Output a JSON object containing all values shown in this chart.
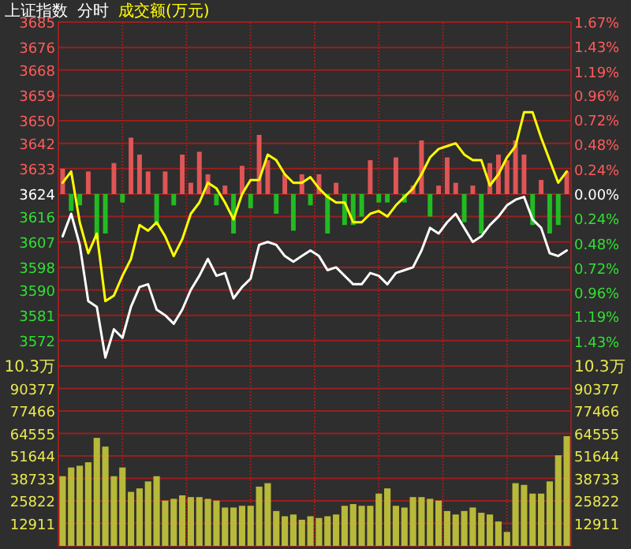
{
  "chart_data": [
    {
      "type": "line",
      "title": "上证指数",
      "subtitle": "分时",
      "annotations": [
        "成交额(万元)"
      ],
      "categories": [
        null,
        null,
        null,
        null,
        null,
        null,
        null,
        null,
        null,
        null,
        null,
        null,
        null,
        null,
        null,
        null,
        null,
        null,
        null,
        null,
        null,
        null,
        null,
        null,
        null,
        null,
        null,
        null,
        null,
        null,
        null,
        null,
        null,
        null,
        null,
        null,
        null,
        null,
        null,
        null,
        null,
        null,
        null,
        null,
        null,
        null,
        null,
        null,
        null,
        null,
        null,
        null,
        null,
        null,
        null,
        null,
        null,
        null,
        null,
        null
      ],
      "series": [
        {
          "type": "bar",
          "base": [
            3624,
            3624,
            3624,
            3624,
            3624,
            3624,
            3624,
            3624,
            3624,
            3624,
            3624,
            3624,
            3624,
            3624,
            3624,
            3624,
            3624,
            3624,
            3624,
            3624,
            3624,
            3624,
            3624,
            3624,
            3624,
            3624,
            3624,
            3624,
            3624,
            3624,
            3624,
            3624,
            3624,
            3624,
            3624,
            3624,
            3624,
            3624,
            3624,
            3624,
            3624,
            3624,
            3624,
            3624,
            3624,
            3624,
            3624,
            3624,
            3624,
            3624,
            3624,
            3624,
            3624,
            3624,
            3624,
            3624,
            3624,
            3624,
            3624,
            3624
          ],
          "values": [
            9,
            -6,
            -4,
            8,
            -16,
            -14,
            11,
            -3,
            20,
            14,
            8,
            -11,
            8,
            -4,
            14,
            4,
            15,
            7,
            -4,
            3,
            -14,
            10,
            -5,
            21,
            12,
            -7,
            7,
            -13,
            7,
            -4,
            7,
            -14,
            4,
            -11,
            -11,
            -8,
            12,
            -3,
            -3,
            13,
            -3,
            3,
            19,
            -8,
            3,
            13,
            4,
            -10,
            3,
            -14,
            11,
            14,
            12,
            19,
            14,
            -11,
            5,
            -14,
            -11,
            8
          ],
          "colors": [
            "#e05555",
            "#22bb22",
            "#22bb22",
            "#e05555",
            "#22bb22",
            "#22bb22",
            "#e05555",
            "#22bb22",
            "#e05555",
            "#e05555",
            "#e05555",
            "#22bb22",
            "#e05555",
            "#22bb22",
            "#e05555",
            "#e05555",
            "#e05555",
            "#e05555",
            "#22bb22",
            "#e05555",
            "#22bb22",
            "#e05555",
            "#22bb22",
            "#e05555",
            "#e05555",
            "#22bb22",
            "#e05555",
            "#22bb22",
            "#e05555",
            "#22bb22",
            "#e05555",
            "#22bb22",
            "#e05555",
            "#22bb22",
            "#22bb22",
            "#22bb22",
            "#e05555",
            "#22bb22",
            "#22bb22",
            "#e05555",
            "#22bb22",
            "#e05555",
            "#e05555",
            "#22bb22",
            "#e05555",
            "#e05555",
            "#e05555",
            "#22bb22",
            "#e05555",
            "#22bb22",
            "#e05555",
            "#e05555",
            "#e05555",
            "#e05555",
            "#e05555",
            "#22bb22",
            "#e05555",
            "#22bb22",
            "#22bb22",
            "#e05555"
          ]
        },
        {
          "color": "#ffffff",
          "values": [
            3609,
            3617,
            3606,
            3586,
            3584,
            3566,
            3576,
            3573,
            3584,
            3591,
            3592,
            3583,
            3581,
            3578,
            3583,
            3590,
            3595,
            3601,
            3595,
            3596,
            3587,
            3591,
            3594,
            3606,
            3607,
            3606,
            3602,
            3600,
            3602,
            3604,
            3602,
            3597,
            3598,
            3595,
            3592,
            3592,
            3596,
            3595,
            3592,
            3596,
            3597,
            3598,
            3604,
            3612,
            3610,
            3614,
            3617,
            3612,
            3607,
            3609,
            3613,
            3616,
            3620,
            3622,
            3623,
            3615,
            3612,
            3603,
            3602,
            3604
          ]
        },
        {
          "color": "#ffff00",
          "values": [
            3628,
            3632,
            3614,
            3603,
            3610,
            3586,
            3588,
            3595,
            3601,
            3613,
            3611,
            3614,
            3609,
            3602,
            3608,
            3617,
            3621,
            3628,
            3626,
            3621,
            3615,
            3624,
            3629,
            3629,
            3638,
            3636,
            3631,
            3628,
            3628,
            3630,
            3626,
            3623,
            3621,
            3621,
            3614,
            3614,
            3617,
            3618,
            3616,
            3620,
            3623,
            3626,
            3631,
            3637,
            3640,
            3641,
            3642,
            3638,
            3636,
            3636,
            3627,
            3631,
            3637,
            3641,
            3653,
            3653,
            3644,
            3636,
            3628,
            3632
          ]
        }
      ],
      "ylim": [
        3563,
        3685
      ],
      "yticks": [
        3685,
        3676,
        3668,
        3659,
        3650,
        3642,
        3633,
        3624,
        3616,
        3607,
        3598,
        3590,
        3581,
        3572
      ],
      "y2lim": [
        -1.67,
        1.67
      ],
      "y2ticks": [
        {
          "value": 1.67,
          "label": "1.67%"
        },
        {
          "value": 1.43,
          "label": "1.43%"
        },
        {
          "value": 1.19,
          "label": "1.19%"
        },
        {
          "value": 0.96,
          "label": "0.96%"
        },
        {
          "value": 0.72,
          "label": "0.72%"
        },
        {
          "value": 0.48,
          "label": "0.48%"
        },
        {
          "value": 0.24,
          "label": "0.24%"
        },
        {
          "value": 0,
          "label": "0.00%"
        },
        {
          "value": -0.24,
          "label": "0.24%"
        },
        {
          "value": -0.48,
          "label": "0.48%"
        },
        {
          "value": -0.72,
          "label": "0.72%"
        },
        {
          "value": -0.96,
          "label": "0.96%"
        },
        {
          "value": -1.19,
          "label": "1.19%"
        },
        {
          "value": -1.43,
          "label": "1.43%"
        }
      ],
      "grid": true
    },
    {
      "type": "bar",
      "categories": [
        null,
        null,
        null,
        null,
        null,
        null,
        null,
        null,
        null,
        null,
        null,
        null,
        null,
        null,
        null,
        null,
        null,
        null,
        null,
        null,
        null,
        null,
        null,
        null,
        null,
        null,
        null,
        null,
        null,
        null,
        null,
        null,
        null,
        null,
        null,
        null,
        null,
        null,
        null,
        null,
        null,
        null,
        null,
        null,
        null,
        null,
        null,
        null,
        null,
        null,
        null,
        null,
        null,
        null,
        null,
        null,
        null,
        null,
        null,
        null
      ],
      "values": [
        40000,
        45000,
        46000,
        48000,
        62000,
        57000,
        40000,
        45000,
        31000,
        33000,
        37000,
        40000,
        26000,
        27000,
        29000,
        28000,
        28000,
        27000,
        26000,
        22000,
        22000,
        23000,
        23000,
        34000,
        36000,
        20000,
        17000,
        18000,
        15000,
        17000,
        16000,
        17000,
        18000,
        23000,
        24000,
        23000,
        23000,
        30000,
        33000,
        23000,
        22000,
        28000,
        28000,
        27000,
        26000,
        20000,
        18000,
        20000,
        22000,
        19000,
        18000,
        14000,
        8000,
        36000,
        35000,
        30000,
        30000,
        37000,
        52000,
        63000
      ],
      "color": "#b8b83a",
      "ylim": [
        0,
        103288
      ],
      "annotations": [
        "10.3万",
        "10.3万"
      ],
      "yticks": [
        12911,
        25822,
        38733,
        51644,
        64555,
        77466,
        90377
      ],
      "y2lim": [
        0,
        103288
      ],
      "y2ticks": [
        12911,
        25822,
        38733,
        51644,
        64555,
        77466,
        90377
      ],
      "grid": true
    }
  ]
}
